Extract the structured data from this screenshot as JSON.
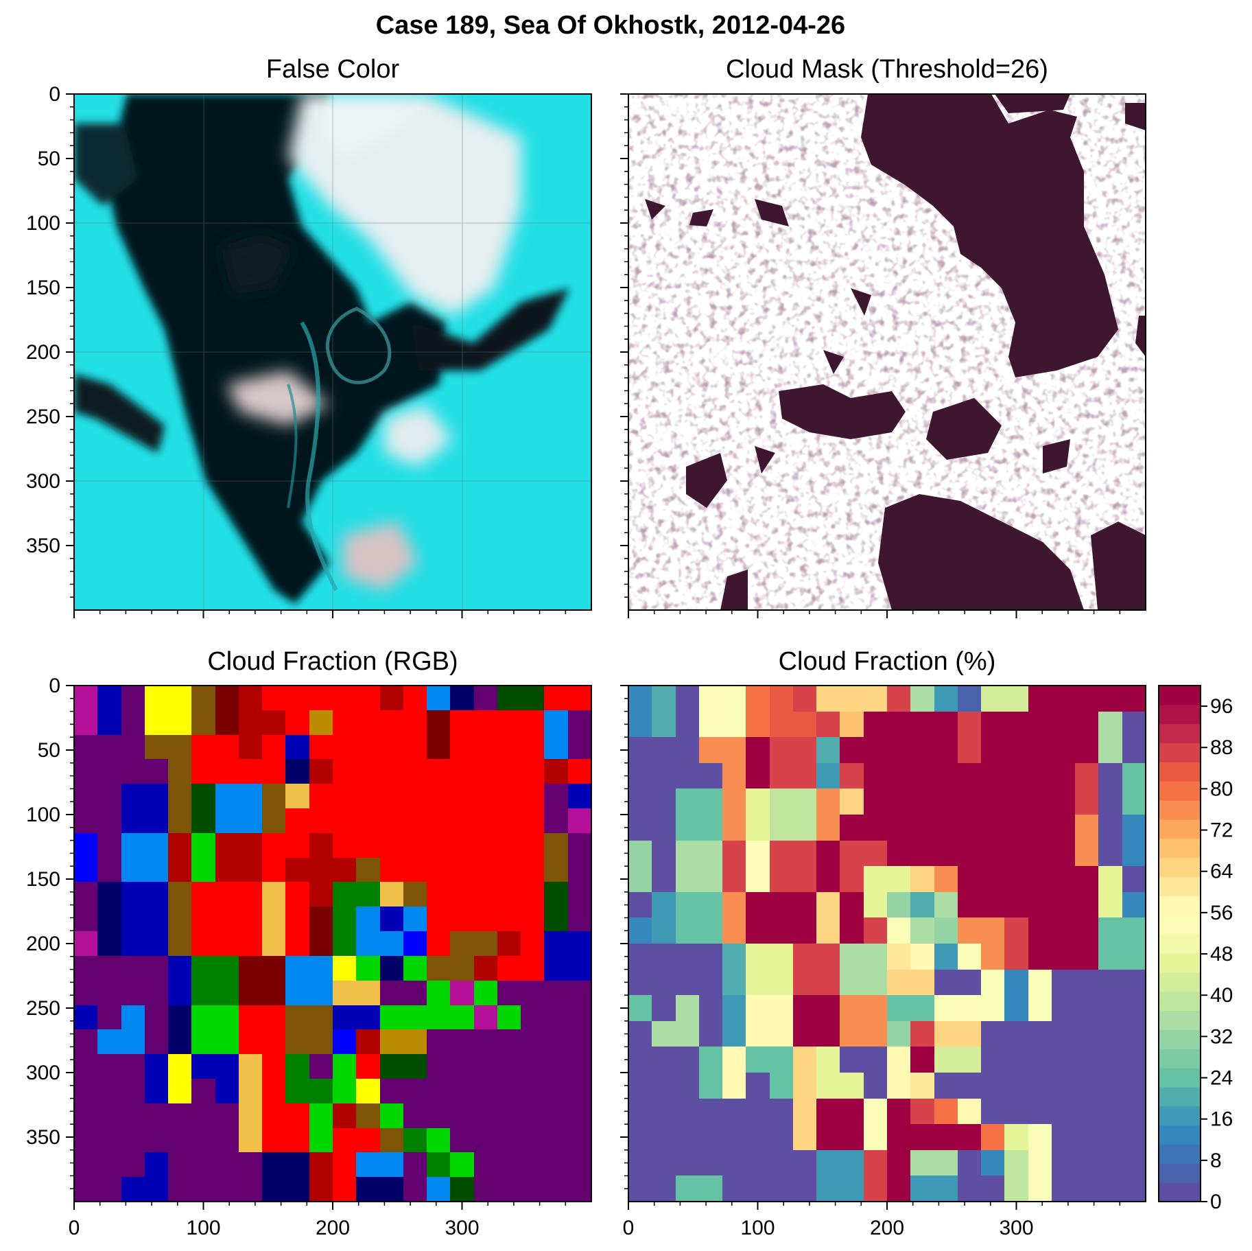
{
  "figure": {
    "suptitle": "Case 189, Sea Of Okhostk, 2012-04-26",
    "tick_values": [
      0,
      50,
      100,
      150,
      200,
      250,
      300,
      350
    ],
    "x_tick_values": [
      0,
      100,
      200,
      300
    ],
    "image_extent": [
      0,
      400
    ]
  },
  "chart_data": [
    {
      "panel": "false-color",
      "type": "heatmap",
      "title": "False Color",
      "xlim": [
        0,
        400
      ],
      "ylim": [
        400,
        0
      ],
      "x_ticks": [
        0,
        100,
        200,
        300
      ],
      "y_ticks": [
        0,
        50,
        100,
        150,
        200,
        250,
        300,
        350
      ],
      "grid": true,
      "description_colors": {
        "ice": "#1de3e8",
        "water": "#05121a",
        "cloud": "#dbe6e8"
      }
    },
    {
      "panel": "cloud-mask",
      "type": "heatmap",
      "title": "Cloud Mask (Threshold=26)",
      "xlim": [
        0,
        400
      ],
      "ylim": [
        400,
        0
      ],
      "x_ticks": [
        0,
        100,
        200,
        300
      ],
      "y_ticks": [
        0,
        50,
        100,
        150,
        200,
        250,
        300,
        350
      ],
      "colors": {
        "mask": "#3f1630",
        "clear": "#ffffff"
      }
    },
    {
      "panel": "cloud-fraction-rgb",
      "type": "heatmap",
      "title": "Cloud Fraction (RGB)",
      "xlim": [
        0,
        400
      ],
      "ylim": [
        400,
        0
      ],
      "x_ticks": [
        0,
        100,
        200,
        300
      ],
      "y_ticks": [
        0,
        50,
        100,
        150,
        200,
        250,
        300,
        350
      ],
      "palette": {
        "P": "#640070",
        "N": "#0000b4",
        "B": "#0000ff",
        "L": "#0088f0",
        "Y": "#ffff00",
        "K": "#7e5406",
        "M": "#b6109a",
        "R": "#ff0000",
        "D": "#7a0000",
        "E": "#b00000",
        "G": "#008000",
        "g": "#00d700",
        "H": "#004d00",
        "O": "#f0c049",
        "C": "#bc8c00",
        "V": "#000068"
      },
      "rows": [
        "MNPYYKDERRRRRERLVPHHRR",
        "MNPYYKDEERCRRRRDRRRRLP",
        "PPPKKRRERNRRRRRDRRRRLP",
        "PPPPKRRRRVERRRRRRRRRER",
        "PPNNKHLLKORRRRRRRRRRPN",
        "PPNNKHLLKRRRRRRRRRRRPM",
        "BPLLEgEERRERRRRRRRRRKP",
        "BPLLEgEEREEEKRRRRRRRKP",
        "PVNNKRRROREGGOKRRRRRHP",
        "PVNNKRRRORDGLNLRRRRRHP",
        "MVNNKRRRORDGLLBRKKERNN",
        "PPPPNGGDDLLYgVgKKERRNN",
        "PPPPNGGDDLLOOPPgMgPPPP",
        "NPLPVggRRKKNNggggMgPPP",
        "PLLPVggRRKKBECCPPPPPPP",
        "PPPNYNNORGPgRHHPPPPPPP",
        "PPPNYPNORGGgYPPPPPPPPP",
        "PPPPPPPORRgEKgPPPPPPPP",
        "PPPPPPPORRgRRKGgPPPPPP",
        "PPPNPPPPVVERLLPGgPPPPP",
        "PPNNPPPPVVERVVPLHPPPPP"
      ]
    },
    {
      "panel": "cloud-fraction-percent",
      "type": "heatmap",
      "title": "Cloud Fraction (%)",
      "xlim": [
        0,
        400
      ],
      "ylim": [
        400,
        0
      ],
      "x_ticks": [
        0,
        100,
        200,
        300
      ],
      "y_ticks": [
        0,
        50,
        100,
        150,
        200,
        250,
        300,
        350
      ],
      "colorbar": {
        "ticks": [
          0,
          8,
          16,
          24,
          32,
          40,
          48,
          56,
          64,
          72,
          80,
          88,
          96
        ],
        "range": [
          0,
          100
        ],
        "levels": [
          "#5e4fa2",
          "#4a62ac",
          "#3d75b5",
          "#3588bb",
          "#3f9bb5",
          "#52aeae",
          "#66c2a5",
          "#7dcba5",
          "#94d4a4",
          "#abdda4",
          "#c0e59f",
          "#d4ed9b",
          "#e6f598",
          "#f2f9a9",
          "#fafdb8",
          "#fff9b3",
          "#fee89b",
          "#fed683",
          "#fdc170",
          "#fca95e",
          "#f98e52",
          "#f47245",
          "#e85a44",
          "#d7434b",
          "#c32a4b",
          "#ae1348",
          "#9e0142"
        ]
      },
      "rows": [
        [
          12,
          22,
          3,
          52,
          52,
          78,
          84,
          88,
          66,
          66,
          66,
          88,
          36,
          16,
          6,
          44,
          44,
          99,
          99,
          99,
          99,
          99
        ],
        [
          12,
          22,
          3,
          52,
          52,
          78,
          84,
          84,
          88,
          68,
          99,
          99,
          99,
          99,
          86,
          99,
          99,
          99,
          99,
          99,
          34,
          3
        ],
        [
          3,
          3,
          3,
          76,
          76,
          99,
          88,
          88,
          22,
          99,
          99,
          99,
          99,
          99,
          86,
          99,
          99,
          99,
          99,
          99,
          34,
          3
        ],
        [
          3,
          3,
          3,
          3,
          76,
          99,
          88,
          88,
          16,
          88,
          99,
          99,
          99,
          99,
          99,
          99,
          99,
          99,
          99,
          88,
          3,
          24
        ],
        [
          3,
          3,
          24,
          24,
          76,
          46,
          38,
          38,
          76,
          66,
          99,
          99,
          99,
          99,
          99,
          99,
          99,
          99,
          99,
          88,
          3,
          24
        ],
        [
          3,
          3,
          24,
          24,
          76,
          46,
          38,
          38,
          76,
          99,
          99,
          99,
          99,
          99,
          99,
          99,
          99,
          99,
          99,
          76,
          3,
          12
        ],
        [
          32,
          3,
          34,
          34,
          88,
          52,
          88,
          88,
          99,
          88,
          88,
          99,
          99,
          99,
          99,
          99,
          99,
          99,
          99,
          76,
          3,
          12
        ],
        [
          32,
          3,
          34,
          34,
          88,
          52,
          88,
          88,
          99,
          88,
          46,
          46,
          64,
          76,
          99,
          99,
          99,
          99,
          99,
          99,
          46,
          3
        ],
        [
          3,
          16,
          24,
          24,
          76,
          99,
          99,
          99,
          66,
          99,
          46,
          32,
          22,
          34,
          99,
          99,
          99,
          99,
          99,
          99,
          46,
          14
        ],
        [
          12,
          16,
          24,
          24,
          76,
          99,
          99,
          99,
          66,
          99,
          88,
          52,
          34,
          32,
          76,
          76,
          88,
          99,
          99,
          99,
          24,
          24
        ],
        [
          3,
          3,
          3,
          3,
          22,
          48,
          48,
          88,
          88,
          36,
          36,
          60,
          56,
          16,
          54,
          76,
          88,
          99,
          99,
          99,
          24,
          24
        ],
        [
          3,
          3,
          3,
          3,
          22,
          48,
          48,
          88,
          88,
          36,
          36,
          66,
          66,
          3,
          3,
          52,
          12,
          52,
          3,
          3,
          3,
          3
        ],
        [
          24,
          3,
          34,
          3,
          16,
          56,
          56,
          99,
          99,
          76,
          76,
          24,
          24,
          52,
          52,
          52,
          12,
          52,
          3,
          3,
          3,
          3
        ],
        [
          3,
          34,
          34,
          3,
          16,
          56,
          56,
          99,
          99,
          76,
          76,
          32,
          88,
          66,
          66,
          3,
          3,
          3,
          3,
          3,
          3,
          3
        ],
        [
          3,
          3,
          3,
          24,
          56,
          24,
          24,
          64,
          48,
          3,
          3,
          56,
          99,
          44,
          44,
          3,
          3,
          3,
          3,
          3,
          3,
          3
        ],
        [
          3,
          3,
          3,
          24,
          56,
          3,
          24,
          64,
          48,
          48,
          3,
          56,
          60,
          3,
          3,
          3,
          3,
          3,
          3,
          3,
          3,
          3
        ],
        [
          3,
          3,
          3,
          3,
          3,
          3,
          3,
          64,
          99,
          99,
          52,
          99,
          88,
          78,
          56,
          3,
          3,
          3,
          3,
          3,
          3,
          3
        ],
        [
          3,
          3,
          3,
          3,
          3,
          3,
          3,
          64,
          99,
          99,
          52,
          99,
          99,
          99,
          99,
          78,
          46,
          52,
          3,
          3,
          3,
          3
        ],
        [
          3,
          3,
          3,
          3,
          3,
          3,
          3,
          3,
          16,
          16,
          88,
          99,
          34,
          34,
          3,
          12,
          40,
          52,
          3,
          3,
          3,
          3
        ],
        [
          3,
          3,
          24,
          24,
          3,
          3,
          3,
          3,
          16,
          16,
          88,
          99,
          16,
          16,
          3,
          3,
          40,
          52,
          3,
          3,
          3,
          3
        ]
      ]
    }
  ]
}
